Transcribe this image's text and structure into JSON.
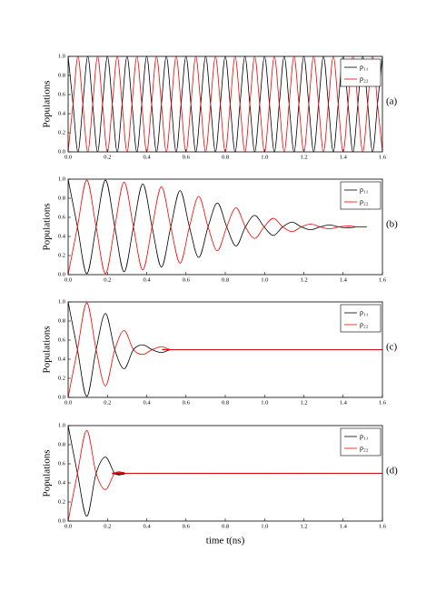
{
  "chart_data": [
    {
      "type": "line",
      "panel_label": "(a)",
      "ylabel": "Populations",
      "xlim": [
        0,
        1.6
      ],
      "ylim": [
        0,
        1
      ],
      "xticks": [
        {
          "value": 0,
          "label": "0.0"
        },
        {
          "value": 0.2,
          "label": "0.2"
        },
        {
          "value": 0.4,
          "label": "0.4"
        },
        {
          "value": 0.6,
          "label": "0.6"
        },
        {
          "value": 0.8,
          "label": "0.8"
        },
        {
          "value": 1,
          "label": "1.0"
        },
        {
          "value": 1.2,
          "label": "1.2"
        },
        {
          "value": 1.4,
          "label": "1.4"
        },
        {
          "value": 1.6,
          "label": "1.6"
        }
      ],
      "yticks": [
        {
          "value": 0,
          "label": "0.0"
        },
        0.2,
        0.4,
        0.6,
        0.8,
        {
          "value": 1,
          "label": "1.0"
        }
      ],
      "x": [
        0,
        0.025,
        0.05,
        0.075,
        0.1,
        0.125,
        0.15,
        0.175,
        0.2,
        0.225,
        0.25,
        0.275,
        0.3,
        0.325,
        0.35,
        0.375,
        0.4,
        0.425,
        0.45,
        0.475,
        0.5,
        0.525,
        0.55,
        0.575,
        0.6,
        0.625,
        0.65,
        0.675,
        0.7,
        0.725,
        0.75,
        0.775,
        0.8,
        0.825,
        0.85,
        0.875,
        0.9,
        0.925,
        0.95,
        0.975,
        1,
        1.025,
        1.05,
        1.075,
        1.1,
        1.125,
        1.15,
        1.175,
        1.2,
        1.225,
        1.25,
        1.275,
        1.3,
        1.325,
        1.35,
        1.375,
        1.4,
        1.425,
        1.45,
        1.475,
        1.5,
        1.525,
        1.55,
        1.575,
        1.6
      ],
      "series": [
        {
          "name": "ρ₁₁",
          "color": "#000000",
          "values": [
            1,
            0.5,
            0,
            0.5,
            1,
            0.5,
            0,
            0.5,
            1,
            0.5,
            0,
            0.5,
            1,
            0.5,
            0,
            0.5,
            1,
            0.5,
            0,
            0.5,
            1,
            0.5,
            0,
            0.5,
            1,
            0.5,
            0,
            0.5,
            1,
            0.5,
            0,
            0.5,
            1,
            0.5,
            0,
            0.5,
            1,
            0.5,
            0,
            0.5,
            1,
            0.5,
            0,
            0.5,
            1,
            0.5,
            0,
            0.5,
            1,
            0.5,
            0,
            0.5,
            1,
            0.5,
            0,
            0.5,
            1,
            0.5,
            0,
            0.5,
            1,
            0.5,
            0,
            0.5,
            1
          ]
        },
        {
          "name": "ρ₂₂",
          "color": "#ff0000",
          "values": [
            0,
            0.5,
            1,
            0.5,
            0,
            0.5,
            1,
            0.5,
            0,
            0.5,
            1,
            0.5,
            0,
            0.5,
            1,
            0.5,
            0,
            0.5,
            1,
            0.5,
            0,
            0.5,
            1,
            0.5,
            0,
            0.5,
            1,
            0.5,
            0,
            0.5,
            1,
            0.5,
            0,
            0.5,
            1,
            0.5,
            0,
            0.5,
            1,
            0.5,
            0,
            0.5,
            1,
            0.5,
            0,
            0.5,
            1,
            0.5,
            0,
            0.5,
            1,
            0.5,
            0,
            0.5,
            1,
            0.5,
            0,
            0.5,
            1,
            0.5,
            0,
            0.5,
            1,
            0.5,
            0
          ]
        }
      ]
    },
    {
      "type": "line",
      "panel_label": "(b)",
      "ylabel": "Populations",
      "xlim": [
        0,
        1.6
      ],
      "ylim": [
        0,
        1
      ],
      "xticks": [
        {
          "value": 0,
          "label": "0.0"
        },
        {
          "value": 0.2,
          "label": "0.2"
        },
        {
          "value": 0.4,
          "label": "0.4"
        },
        {
          "value": 0.6,
          "label": "0.6"
        },
        {
          "value": 0.8,
          "label": "0.8"
        },
        {
          "value": 1,
          "label": "1.0"
        },
        {
          "value": 1.2,
          "label": "1.2"
        },
        {
          "value": 1.4,
          "label": "1.4"
        },
        {
          "value": 1.6,
          "label": "1.6"
        }
      ],
      "yticks": [
        {
          "value": 0,
          "label": "0.0"
        },
        0.2,
        0.4,
        0.6,
        0.8,
        {
          "value": 1,
          "label": "1.0"
        }
      ],
      "x": [
        0,
        0.0475,
        0.095,
        0.1425,
        0.19,
        0.2375,
        0.285,
        0.3325,
        0.38,
        0.4275,
        0.475,
        0.5225,
        0.57,
        0.6175,
        0.665,
        0.7125,
        0.76,
        0.8075,
        0.855,
        0.9025,
        0.95,
        0.9975,
        1.045,
        1.0925,
        1.14,
        1.1875,
        1.235,
        1.2825,
        1.33,
        1.3775,
        1.425,
        1.4725,
        1.52
      ],
      "series": [
        {
          "name": "ρ₁₁",
          "color": "#000000",
          "values": [
            1,
            0.5,
            0.01,
            0.5,
            0.99,
            0.5,
            0.03,
            0.5,
            0.95,
            0.5,
            0.08,
            0.5,
            0.88,
            0.5,
            0.18,
            0.5,
            0.75,
            0.5,
            0.3,
            0.5,
            0.62,
            0.5,
            0.41,
            0.5,
            0.55,
            0.5,
            0.47,
            0.5,
            0.52,
            0.5,
            0.49,
            0.5,
            0.5
          ]
        },
        {
          "name": "ρ₂₂",
          "color": "#ff0000",
          "values": [
            0,
            0.5,
            0.99,
            0.5,
            0.01,
            0.5,
            0.97,
            0.5,
            0.05,
            0.5,
            0.92,
            0.5,
            0.12,
            0.5,
            0.82,
            0.5,
            0.25,
            0.5,
            0.7,
            0.5,
            0.38,
            0.5,
            0.59,
            0.5,
            0.45,
            0.5,
            0.53,
            0.5,
            0.48,
            0.5,
            0.51,
            0.5,
            0.5
          ]
        }
      ]
    },
    {
      "type": "line",
      "panel_label": "(c)",
      "ylabel": "Populations",
      "xlim": [
        0,
        1.6
      ],
      "ylim": [
        0,
        1
      ],
      "xticks": [
        {
          "value": 0,
          "label": "0.0"
        },
        {
          "value": 0.2,
          "label": "0.2"
        },
        {
          "value": 0.4,
          "label": "0.4"
        },
        {
          "value": 0.6,
          "label": "0.6"
        },
        {
          "value": 0.8,
          "label": "0.8"
        },
        {
          "value": 1,
          "label": "1.0"
        },
        {
          "value": 1.2,
          "label": "1.2"
        },
        {
          "value": 1.4,
          "label": "1.4"
        },
        {
          "value": 1.6,
          "label": "1.6"
        }
      ],
      "yticks": [
        {
          "value": 0,
          "label": "0.0"
        },
        0.2,
        0.4,
        0.6,
        0.8,
        {
          "value": 1,
          "label": "1.0"
        }
      ],
      "x": [
        0,
        0.0475,
        0.095,
        0.1425,
        0.19,
        0.2375,
        0.285,
        0.3325,
        0.38,
        0.4275,
        0.475,
        0.5225,
        0.57,
        1.6
      ],
      "series": [
        {
          "name": "ρ₁₁",
          "color": "#000000",
          "values": [
            1,
            0.5,
            0.01,
            0.5,
            0.88,
            0.5,
            0.3,
            0.5,
            0.55,
            0.5,
            0.47,
            0.5,
            0.5,
            0.5
          ]
        },
        {
          "name": "ρ₂₂",
          "color": "#ff0000",
          "values": [
            0,
            0.5,
            0.99,
            0.5,
            0.12,
            0.5,
            0.7,
            0.5,
            0.45,
            0.5,
            0.53,
            0.5,
            0.5,
            0.5
          ]
        }
      ]
    },
    {
      "type": "line",
      "panel_label": "(d)",
      "ylabel": "Populations",
      "xlabel": "time t(ns)",
      "xlim": [
        0,
        1.6
      ],
      "ylim": [
        0,
        1
      ],
      "xticks": [
        {
          "value": 0,
          "label": "0.0"
        },
        {
          "value": 0.2,
          "label": "0.2"
        },
        {
          "value": 0.4,
          "label": "0.4"
        },
        {
          "value": 0.6,
          "label": "0.6"
        },
        {
          "value": 0.8,
          "label": "0.8"
        },
        {
          "value": 1,
          "label": "1.0"
        },
        {
          "value": 1.2,
          "label": "1.2"
        },
        {
          "value": 1.4,
          "label": "1.4"
        },
        {
          "value": 1.6,
          "label": "1.6"
        }
      ],
      "yticks": [
        {
          "value": 0,
          "label": "0.0"
        },
        0.2,
        0.4,
        0.6,
        0.8,
        {
          "value": 1,
          "label": "1.0"
        }
      ],
      "x": [
        0,
        0.0475,
        0.095,
        0.1425,
        0.19,
        0.2375,
        0.285,
        0.3325,
        1.6
      ],
      "series": [
        {
          "name": "ρ₁₁",
          "color": "#000000",
          "values": [
            1,
            0.5,
            0.05,
            0.5,
            0.67,
            0.5,
            0.49,
            0.5,
            0.5
          ]
        },
        {
          "name": "ρ₂₂",
          "color": "#ff0000",
          "values": [
            0,
            0.5,
            0.95,
            0.5,
            0.33,
            0.5,
            0.51,
            0.5,
            0.5
          ]
        }
      ]
    }
  ]
}
